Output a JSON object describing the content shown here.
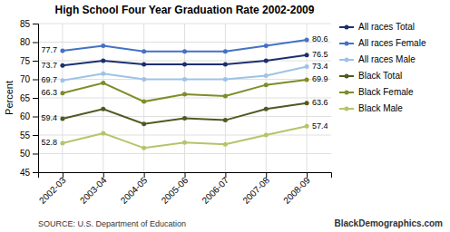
{
  "chart_data": {
    "type": "line",
    "title": "High School Four Year Graduation Rate 2002-2009",
    "ylabel": "Percent",
    "categories": [
      "2002-03",
      "2003-04",
      "2004-05",
      "2005-06",
      "2006-07",
      "2007-08",
      "2008-09"
    ],
    "series": [
      {
        "name": "All races Total",
        "color": "#1c2f6e",
        "values": [
          73.7,
          75.0,
          74.0,
          74.0,
          74.0,
          75.0,
          76.5
        ]
      },
      {
        "name": "All races Female",
        "color": "#4472c4",
        "values": [
          77.7,
          79.0,
          77.5,
          77.5,
          77.5,
          79.0,
          80.6
        ]
      },
      {
        "name": "All races Male",
        "color": "#9dc3e6",
        "values": [
          69.7,
          71.5,
          70.0,
          70.0,
          70.0,
          71.0,
          73.4
        ]
      },
      {
        "name": "Black Total",
        "color": "#4d5a21",
        "values": [
          59.4,
          62.0,
          58.0,
          59.5,
          59.0,
          62.0,
          63.6
        ]
      },
      {
        "name": "Black Female",
        "color": "#7f8c2a",
        "values": [
          66.3,
          69.0,
          64.0,
          66.0,
          65.5,
          68.5,
          69.9
        ]
      },
      {
        "name": "Black Male",
        "color": "#b5c46a",
        "values": [
          52.8,
          55.5,
          51.5,
          53.0,
          52.5,
          55.0,
          57.4
        ]
      }
    ],
    "ylim": [
      45,
      85
    ],
    "yticks": [
      45,
      50,
      55,
      60,
      65,
      70,
      75,
      80,
      85
    ],
    "grid": true,
    "legend": "right",
    "marker": "circle",
    "annotations": [
      {
        "text": "73.7",
        "x": "2002-03",
        "y": 73.7
      },
      {
        "text": "76.5",
        "x": "2008-09",
        "y": 76.5
      },
      {
        "text": "77.7",
        "x": "2002-03",
        "y": 77.7
      },
      {
        "text": "80.6",
        "x": "2008-09",
        "y": 80.6
      },
      {
        "text": "69.7",
        "x": "2002-03",
        "y": 69.7
      },
      {
        "text": "73.4",
        "x": "2008-09",
        "y": 73.4
      },
      {
        "text": "59.4",
        "x": "2002-03",
        "y": 59.4
      },
      {
        "text": "63.6",
        "x": "2008-09",
        "y": 63.6
      },
      {
        "text": "66.3",
        "x": "2002-03",
        "y": 66.3
      },
      {
        "text": "69.9",
        "x": "2008-09",
        "y": 69.9
      },
      {
        "text": "52.8",
        "x": "2002-03",
        "y": 52.8
      },
      {
        "text": "57.4",
        "x": "2008-09",
        "y": 57.4
      }
    ],
    "source": "SOURCE: U.S. Department of Education",
    "watermark": "BlackDemographics.com"
  }
}
